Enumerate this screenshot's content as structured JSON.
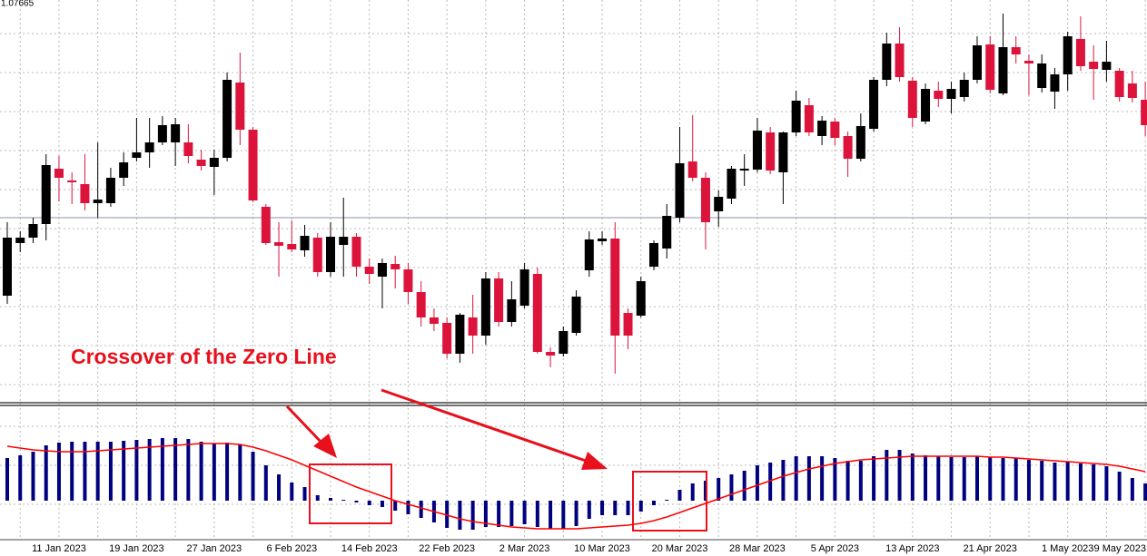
{
  "chart_data": [
    {
      "type": "candlestick",
      "price_label": "1.07665",
      "annotation": "Crossover of the Zero Line",
      "categories": [
        null,
        null,
        null,
        null,
        "11 Jan 2023",
        null,
        null,
        null,
        null,
        null,
        "19 Jan 2023",
        null,
        null,
        null,
        null,
        null,
        "27 Jan 2023",
        null,
        null,
        null,
        null,
        null,
        "6 Feb 2023",
        null,
        null,
        null,
        null,
        null,
        "14 Feb 2023",
        null,
        null,
        null,
        null,
        null,
        "22 Feb 2023",
        null,
        null,
        null,
        null,
        null,
        "2 Mar 2023",
        null,
        null,
        null,
        null,
        null,
        "10 Mar 2023",
        null,
        null,
        null,
        null,
        null,
        "20 Mar 2023",
        null,
        null,
        null,
        null,
        null,
        "28 Mar 2023",
        null,
        null,
        null,
        null,
        null,
        "5 Apr 2023",
        null,
        null,
        null,
        null,
        null,
        "13 Apr 2023",
        null,
        null,
        null,
        null,
        null,
        "21 Apr 2023",
        null,
        null,
        null,
        null,
        null,
        "1 May 2023",
        null,
        null,
        null,
        null,
        null,
        "9 May 2023"
      ],
      "open": [
        119,
        177,
        183,
        198,
        259,
        246,
        242,
        221,
        221,
        249,
        271,
        277,
        288,
        288,
        288,
        269,
        261,
        271,
        354,
        302,
        217,
        178,
        176,
        169,
        183,
        145,
        175,
        184,
        151,
        140,
        154,
        148,
        123,
        95,
        89,
        55,
        95,
        75,
        138,
        90,
        108,
        143,
        57,
        55,
        78,
        147,
        179,
        182,
        100,
        97,
        151,
        171,
        205,
        267,
        249,
        212,
        226,
        257,
        258,
        299,
        255,
        299,
        329,
        295,
        311,
        295,
        270,
        303,
        357,
        397,
        356,
        311,
        345,
        336,
        338,
        357,
        396,
        342,
        393,
        378,
        348,
        344,
        363,
        402,
        377,
        368,
        367,
        353,
        335
      ],
      "high": [
        200,
        190,
        205,
        275,
        273,
        255,
        275,
        288,
        260,
        277,
        315,
        315,
        317,
        315,
        308,
        280,
        280,
        365,
        387,
        305,
        220,
        200,
        202,
        197,
        188,
        200,
        227,
        188,
        160,
        160,
        163,
        155,
        135,
        105,
        95,
        100,
        120,
        145,
        145,
        135,
        155,
        150,
        62,
        85,
        125,
        190,
        190,
        200,
        105,
        140,
        180,
        220,
        305,
        318,
        255,
        235,
        262,
        275,
        315,
        305,
        300,
        345,
        337,
        317,
        315,
        300,
        320,
        360,
        409,
        415,
        360,
        353,
        355,
        355,
        365,
        405,
        405,
        430,
        405,
        385,
        385,
        370,
        410,
        427,
        395,
        400,
        370,
        367,
        355
      ],
      "low": [
        110,
        167,
        177,
        180,
        223,
        220,
        213,
        205,
        217,
        240,
        267,
        260,
        285,
        262,
        265,
        257,
        230,
        267,
        285,
        222,
        175,
        140,
        167,
        162,
        140,
        140,
        140,
        140,
        132,
        105,
        127,
        110,
        85,
        80,
        50,
        45,
        55,
        65,
        85,
        85,
        105,
        55,
        40,
        52,
        75,
        140,
        175,
        33,
        60,
        95,
        147,
        160,
        200,
        245,
        170,
        195,
        220,
        240,
        255,
        253,
        220,
        295,
        295,
        285,
        285,
        250,
        267,
        300,
        350,
        355,
        305,
        308,
        327,
        320,
        333,
        353,
        342,
        340,
        375,
        340,
        343,
        325,
        345,
        367,
        335,
        355,
        333,
        332,
        295
      ],
      "close": [
        183,
        183,
        198,
        263,
        249,
        244,
        221,
        225,
        249,
        266,
        277,
        288,
        307,
        308,
        273,
        262,
        271,
        357,
        302,
        224,
        177,
        174,
        170,
        185,
        145,
        184,
        184,
        151,
        143,
        155,
        148,
        123,
        95,
        88,
        55,
        98,
        75,
        138,
        90,
        115,
        148,
        57,
        53,
        80,
        118,
        181,
        182,
        75,
        75,
        135,
        177,
        207,
        265,
        249,
        200,
        228,
        259,
        259,
        301,
        257,
        299,
        334,
        299,
        312,
        293,
        270,
        306,
        357,
        397,
        360,
        315,
        347,
        336,
        347,
        357,
        395,
        346,
        393,
        385,
        375,
        375,
        363,
        405,
        372,
        369,
        377,
        338,
        337,
        307
      ],
      "up_color": "#000000",
      "down_color": "#dc143c",
      "ylim": [
        0,
        445
      ],
      "grid": true
    },
    {
      "type": "macd",
      "series": [
        {
          "type": "bar",
          "color": "#00007f",
          "values": [
            47,
            50,
            54,
            61,
            64,
            65,
            65,
            65,
            65,
            66,
            67,
            68,
            69,
            69,
            68,
            65,
            63,
            64,
            62,
            54,
            39,
            29,
            20,
            15,
            6,
            3,
            1,
            -2,
            -5,
            -7,
            -11,
            -15,
            -19,
            -24,
            -30,
            -32,
            -32,
            -29,
            -29,
            -28,
            -26,
            -29,
            -31,
            -31,
            -28,
            -20,
            -16,
            -16,
            -16,
            -12,
            -5,
            1,
            12,
            19,
            22,
            25,
            29,
            33,
            39,
            42,
            45,
            49,
            49,
            49,
            47,
            44,
            44,
            49,
            56,
            56,
            52,
            50,
            49,
            48,
            48,
            49,
            48,
            47,
            47,
            45,
            44,
            42,
            43,
            41,
            40,
            38,
            32,
            25,
            19
          ]
        },
        {
          "type": "line",
          "color": "#ff0000",
          "values": [
            60,
            58,
            56,
            55,
            54,
            54,
            54,
            55,
            56,
            57,
            58,
            59,
            60,
            61,
            62,
            63,
            63,
            63,
            62,
            59,
            55,
            50,
            45,
            39,
            33,
            27,
            21,
            15,
            10,
            5,
            0,
            -4,
            -8,
            -12,
            -16,
            -20,
            -23,
            -25,
            -27,
            -29,
            -30,
            -31,
            -31,
            -31,
            -31,
            -30,
            -29,
            -28,
            -27,
            -25,
            -22,
            -18,
            -13,
            -8,
            -3,
            2,
            7,
            12,
            17,
            22,
            27,
            31,
            35,
            38,
            41,
            43,
            45,
            46,
            47,
            48,
            49,
            49,
            49,
            49,
            49,
            49,
            48,
            48,
            47,
            46,
            45,
            44,
            43,
            42,
            41,
            40,
            38,
            35,
            32
          ]
        }
      ],
      "ylim": [
        -43,
        104
      ]
    }
  ]
}
